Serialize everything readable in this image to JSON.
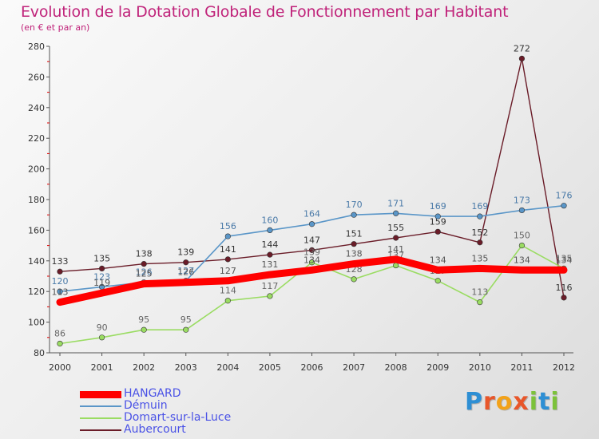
{
  "title": "Evolution de la Dotation Globale de Fonctionnement par Habitant",
  "subtitle": "(en € et par an)",
  "brand": "Proxiti",
  "chart_data": {
    "type": "line",
    "title": "Evolution de la Dotation Globale de Fonctionnement par Habitant",
    "ylabel": "(en € et par an)",
    "xlabel": "",
    "ylim": [
      80,
      280
    ],
    "yticks": [
      80,
      100,
      120,
      140,
      160,
      180,
      200,
      220,
      240,
      260,
      280
    ],
    "grid": false,
    "legend_position": "bottom-left",
    "categories": [
      "2000",
      "2001",
      "2002",
      "2003",
      "2004",
      "2005",
      "2006",
      "2007",
      "2008",
      "2009",
      "2010",
      "2011",
      "2012"
    ],
    "series": [
      {
        "name": "HANGARD",
        "color": "#ff0000",
        "values": [
          113,
          119,
          125,
          126,
          127,
          131,
          134,
          138,
          141,
          134,
          135,
          134,
          134
        ]
      },
      {
        "name": "Démuin",
        "color": "#5a96c8",
        "values": [
          120,
          123,
          126,
          127,
          156,
          160,
          164,
          170,
          171,
          169,
          169,
          173,
          176
        ]
      },
      {
        "name": "Domart-sur-la-Luce",
        "color": "#9adc62",
        "values": [
          86,
          90,
          95,
          95,
          114,
          117,
          139,
          128,
          137,
          127,
          113,
          150,
          135
        ]
      },
      {
        "name": "Aubercourt",
        "color": "#6a1c28",
        "values": [
          133,
          135,
          138,
          139,
          141,
          144,
          147,
          151,
          155,
          159,
          152,
          272,
          116
        ]
      }
    ]
  }
}
